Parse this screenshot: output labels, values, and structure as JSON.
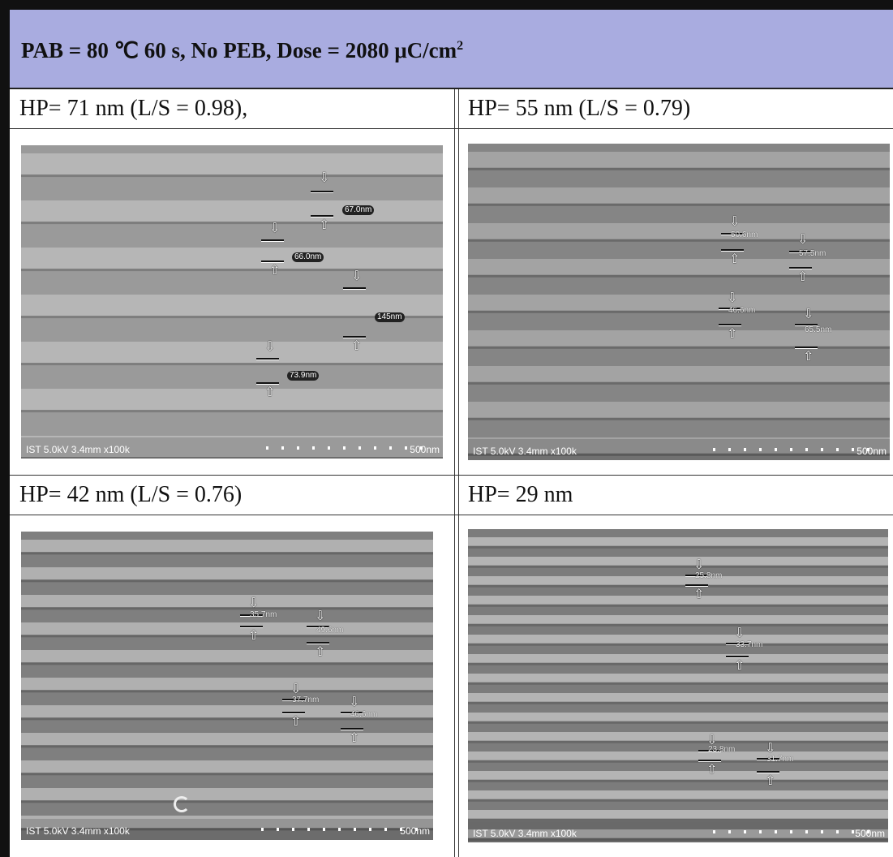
{
  "header": {
    "title": "PAB = 80 ℃ 60 s, No PEB, Dose = 2080 μC/cm",
    "title_superscript": "2"
  },
  "panels": [
    {
      "label": "HP= 71 nm (L/S = 0.98),",
      "info": "IST 5.0kV 3.4mm x100k",
      "scale": "500nm",
      "measurements": [
        "67.0nm",
        "66.0nm",
        "145nm",
        "73.9nm"
      ]
    },
    {
      "label": "HP= 55 nm (L/S = 0.79)",
      "info": "IST 5.0kV 3.4mm x100k",
      "scale": "500nm",
      "measurements": [
        "50.6nm",
        "57.5nm",
        "46.6nm",
        "65.5nm"
      ]
    },
    {
      "label": "HP= 42 nm (L/S = 0.76)",
      "info": "IST 5.0kV 3.4mm x100k",
      "scale": "500nm",
      "measurements": [
        "35.7nm",
        "49.6nm",
        "37.7nm",
        "46.6nm"
      ]
    },
    {
      "label": "HP= 29 nm",
      "info": "IST 5.0kV 3.4mm x100k",
      "scale": "500nm",
      "measurements": [
        "25.8nm",
        "33.7nm",
        "23.8nm",
        "31.7nm"
      ]
    }
  ],
  "colors": {
    "header_bg": "#a9ace0",
    "border": "#111111"
  }
}
